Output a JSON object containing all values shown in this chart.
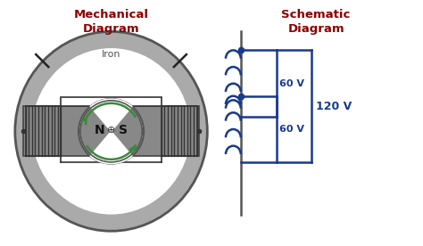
{
  "bg_color": "#ffffff",
  "title_mech": "Mechanical\nDiagram",
  "title_schem": "Schematic\nDiagram",
  "title_color": "#8b0000",
  "iron_label": "Iron",
  "iron_label_color": "#555555",
  "coil_color": "#333333",
  "arrow_color": "#3a8a3a",
  "schematic_color": "#1a3a8a",
  "voltage_60": "60 V",
  "voltage_120": "120 V"
}
